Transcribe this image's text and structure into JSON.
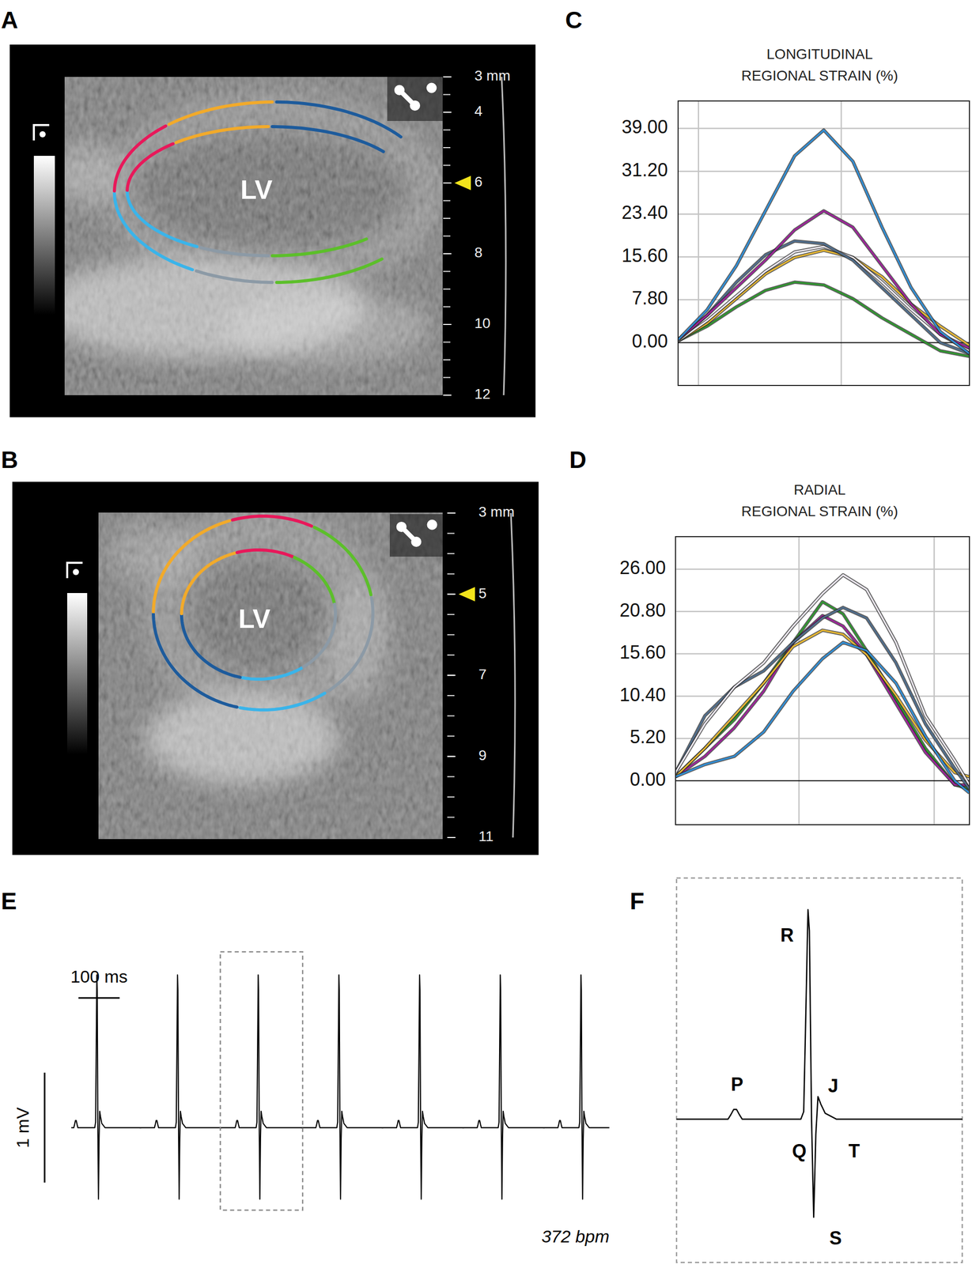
{
  "images": [
    {
      "panel": "A",
      "label": "LV",
      "depth_range": [
        3,
        12
      ],
      "depth_ticks": [
        {
          "value": 3,
          "label": "3 mm"
        },
        4,
        6,
        8,
        10,
        12
      ],
      "depth_marker": 6,
      "colors": [
        "#5cbf2a",
        "#8c9aa6",
        "#3ab4ea",
        "#e8185a",
        "#f2aa2a",
        "#1d5b9c"
      ]
    },
    {
      "panel": "B",
      "label": "LV",
      "depth_range": [
        3,
        11
      ],
      "depth_ticks": [
        {
          "value": 3,
          "label": "3 mm"
        },
        5,
        7,
        9,
        11
      ],
      "depth_marker": 5,
      "colors": [
        "#3ab4ea",
        "#1d5b9c",
        "#f2aa2a",
        "#e8185a",
        "#5cbf2a",
        "#8c9aa6"
      ]
    }
  ],
  "chart_data": [
    {
      "panel": "C",
      "type": "line",
      "title": [
        "LONGITUDINAL",
        "REGIONAL STRAIN (%)"
      ],
      "xlim": [
        0,
        100
      ],
      "xticks": [
        7,
        56
      ],
      "ylim": [
        -7.8,
        44
      ],
      "yticks": [
        {
          "value": 0,
          "label": "0.00"
        },
        {
          "value": 7.8,
          "label": "7.80"
        },
        {
          "value": 15.6,
          "label": "15.60"
        },
        {
          "value": 23.4,
          "label": "23.40"
        },
        {
          "value": 31.2,
          "label": "31.20"
        },
        {
          "value": 39,
          "label": "39.00"
        }
      ],
      "grid": true,
      "tick_labels": "y",
      "x": [
        0,
        10,
        20,
        30,
        40,
        50,
        60,
        70,
        80,
        90,
        100
      ],
      "series": [
        {
          "color": "#2e9a2e",
          "values": [
            0.3,
            3,
            6.5,
            9.5,
            11,
            10.5,
            8,
            4.5,
            1.5,
            -1.5,
            -2.5
          ]
        },
        {
          "color": "#e8b830",
          "values": [
            0.3,
            3.5,
            8,
            12.5,
            15.5,
            16.8,
            15.5,
            12,
            7,
            3,
            -0.5
          ]
        },
        {
          "color": "#ece8f0",
          "values": [
            0.3,
            4,
            8.5,
            13,
            16.5,
            17.5,
            15.5,
            11,
            6,
            1.5,
            -1.5
          ]
        },
        {
          "color": "#4f6e8e",
          "values": [
            0.5,
            5,
            11,
            16,
            18.5,
            18,
            15,
            10,
            5,
            0,
            -2
          ]
        },
        {
          "color": "#a0209c",
          "values": [
            0.5,
            5,
            10,
            15,
            20.5,
            24,
            21,
            14,
            7,
            1.5,
            -1
          ]
        },
        {
          "color": "#2f8fd8",
          "values": [
            0.5,
            6,
            14,
            24,
            34,
            38.7,
            33,
            21,
            10,
            2,
            -2
          ]
        }
      ]
    },
    {
      "panel": "D",
      "type": "line",
      "title": [
        "RADIAL",
        "REGIONAL STRAIN (%)"
      ],
      "xlim": [
        0,
        100
      ],
      "xticks": [
        42,
        88
      ],
      "ylim": [
        -5.4,
        30
      ],
      "yticks": [
        {
          "value": 0,
          "label": "0.00"
        },
        {
          "value": 5.2,
          "label": "5.20"
        },
        {
          "value": 10.4,
          "label": "10.40"
        },
        {
          "value": 15.6,
          "label": "15.60"
        },
        {
          "value": 20.8,
          "label": "20.80"
        },
        {
          "value": 26,
          "label": "26.00"
        }
      ],
      "grid": true,
      "tick_labels": "y",
      "x": [
        0,
        10,
        20,
        30,
        40,
        50,
        57,
        65,
        75,
        85,
        95,
        100
      ],
      "series": [
        {
          "color": "#2e9a2e",
          "values": [
            0.5,
            4,
            7.5,
            12,
            17,
            22,
            20.5,
            16,
            10,
            4,
            -0.5,
            -1
          ]
        },
        {
          "color": "#a0209c",
          "values": [
            0.5,
            3,
            6.5,
            11,
            17,
            20.3,
            19,
            15.5,
            9.5,
            3.5,
            -0.5,
            -0.5
          ]
        },
        {
          "color": "#e8b830",
          "values": [
            0.5,
            4,
            8,
            12,
            16.5,
            18.5,
            18,
            15.5,
            10.5,
            5,
            1,
            0.5
          ]
        },
        {
          "color": "#2f8fd8",
          "values": [
            0.5,
            2,
            3,
            6,
            11,
            15,
            17,
            16,
            12,
            5.5,
            0,
            -1.5
          ]
        },
        {
          "color": "#4f6e8e",
          "values": [
            1,
            8,
            11.5,
            13.5,
            17,
            20,
            21.3,
            20,
            14.5,
            7,
            1.5,
            -1
          ]
        },
        {
          "color": "#ece8f0",
          "values": [
            1,
            7,
            11.5,
            14.5,
            19,
            23,
            25.3,
            23.5,
            17,
            8,
            2.5,
            -0.5
          ]
        }
      ]
    },
    {
      "panel": "E",
      "type": "line",
      "xlim": [
        -62,
        1245
      ],
      "ylim": [
        -0.75,
        1.6
      ],
      "tick_labels": false,
      "x": [
        -92,
        -56,
        -54,
        -52,
        -50,
        -48,
        -46,
        -5,
        -3,
        -1.5,
        0,
        1,
        2.5,
        4,
        5.5,
        7,
        9,
        12,
        20,
        108
      ],
      "values": [
        0,
        0,
        0.03,
        0.065,
        0.065,
        0.03,
        0,
        0,
        0.05,
        0.7,
        1.39,
        1.25,
        0,
        -0.65,
        -0.1,
        0.15,
        0.1,
        0.04,
        0,
        0
      ],
      "beat_times": [
        0,
        196,
        392,
        588,
        784,
        980,
        1176
      ],
      "zoom_beat": 2,
      "scale_bars": [
        {
          "value": 100,
          "label": "100 ms"
        },
        {
          "value": 1,
          "label": "1 mV"
        }
      ],
      "annotations": [
        {
          "text": "372 bpm"
        }
      ]
    },
    {
      "panel": "F",
      "type": "line",
      "xlim": [
        -92,
        108
      ],
      "ylim": [
        -0.95,
        1.6
      ],
      "tick_labels": false,
      "annotations": [
        {
          "text": "P",
          "x": -49.6,
          "y": 0.22
        },
        {
          "text": "R",
          "x": -14.6,
          "y": 1.21
        },
        {
          "text": "Q",
          "x": -6.1,
          "y": -0.22
        },
        {
          "text": "J",
          "x": 17.6,
          "y": 0.21
        },
        {
          "text": "T",
          "x": 32.3,
          "y": -0.22
        },
        {
          "text": "S",
          "x": 19.3,
          "y": -0.8
        }
      ]
    }
  ]
}
